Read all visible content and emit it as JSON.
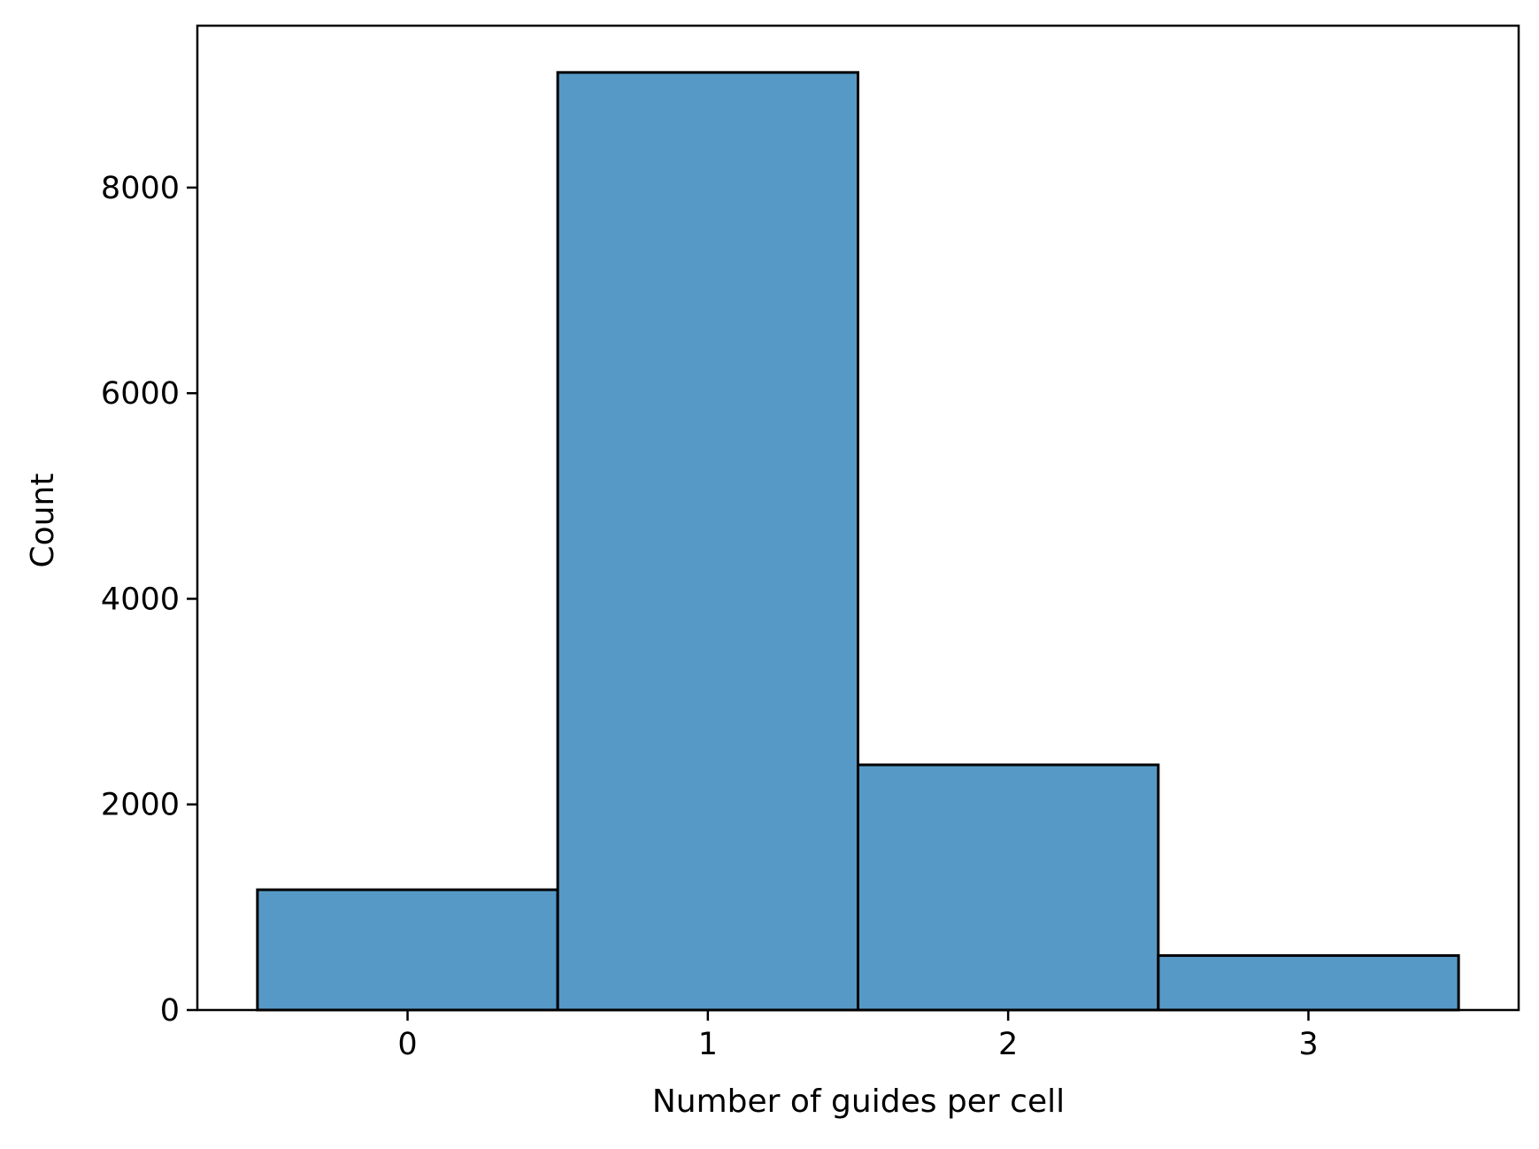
{
  "chart_data": {
    "type": "bar",
    "title": "",
    "xlabel": "Number of guides per cell",
    "ylabel": "Count",
    "categories": [
      "0",
      "1",
      "2",
      "3"
    ],
    "bins": [
      {
        "x_start": -0.5,
        "x_end": 0.5,
        "value": 1170
      },
      {
        "x_start": 0.5,
        "x_end": 1.5,
        "value": 9120
      },
      {
        "x_start": 1.5,
        "x_end": 2.5,
        "value": 2385
      },
      {
        "x_start": 2.5,
        "x_end": 3.5,
        "value": 530
      }
    ],
    "xlim": [
      -0.7,
      3.7
    ],
    "ylim": [
      0,
      9575
    ],
    "x_ticks": [
      0,
      1,
      2,
      3
    ],
    "x_tick_labels": [
      "0",
      "1",
      "2",
      "3"
    ],
    "y_ticks": [
      0,
      2000,
      4000,
      6000,
      8000
    ],
    "y_tick_labels": [
      "0",
      "2000",
      "4000",
      "6000",
      "8000"
    ],
    "grid": false,
    "legend": "none",
    "colors": {
      "bar_fill": "#5799c6",
      "bar_edge": "#000000",
      "axes": "#000000",
      "background": "#ffffff"
    }
  }
}
